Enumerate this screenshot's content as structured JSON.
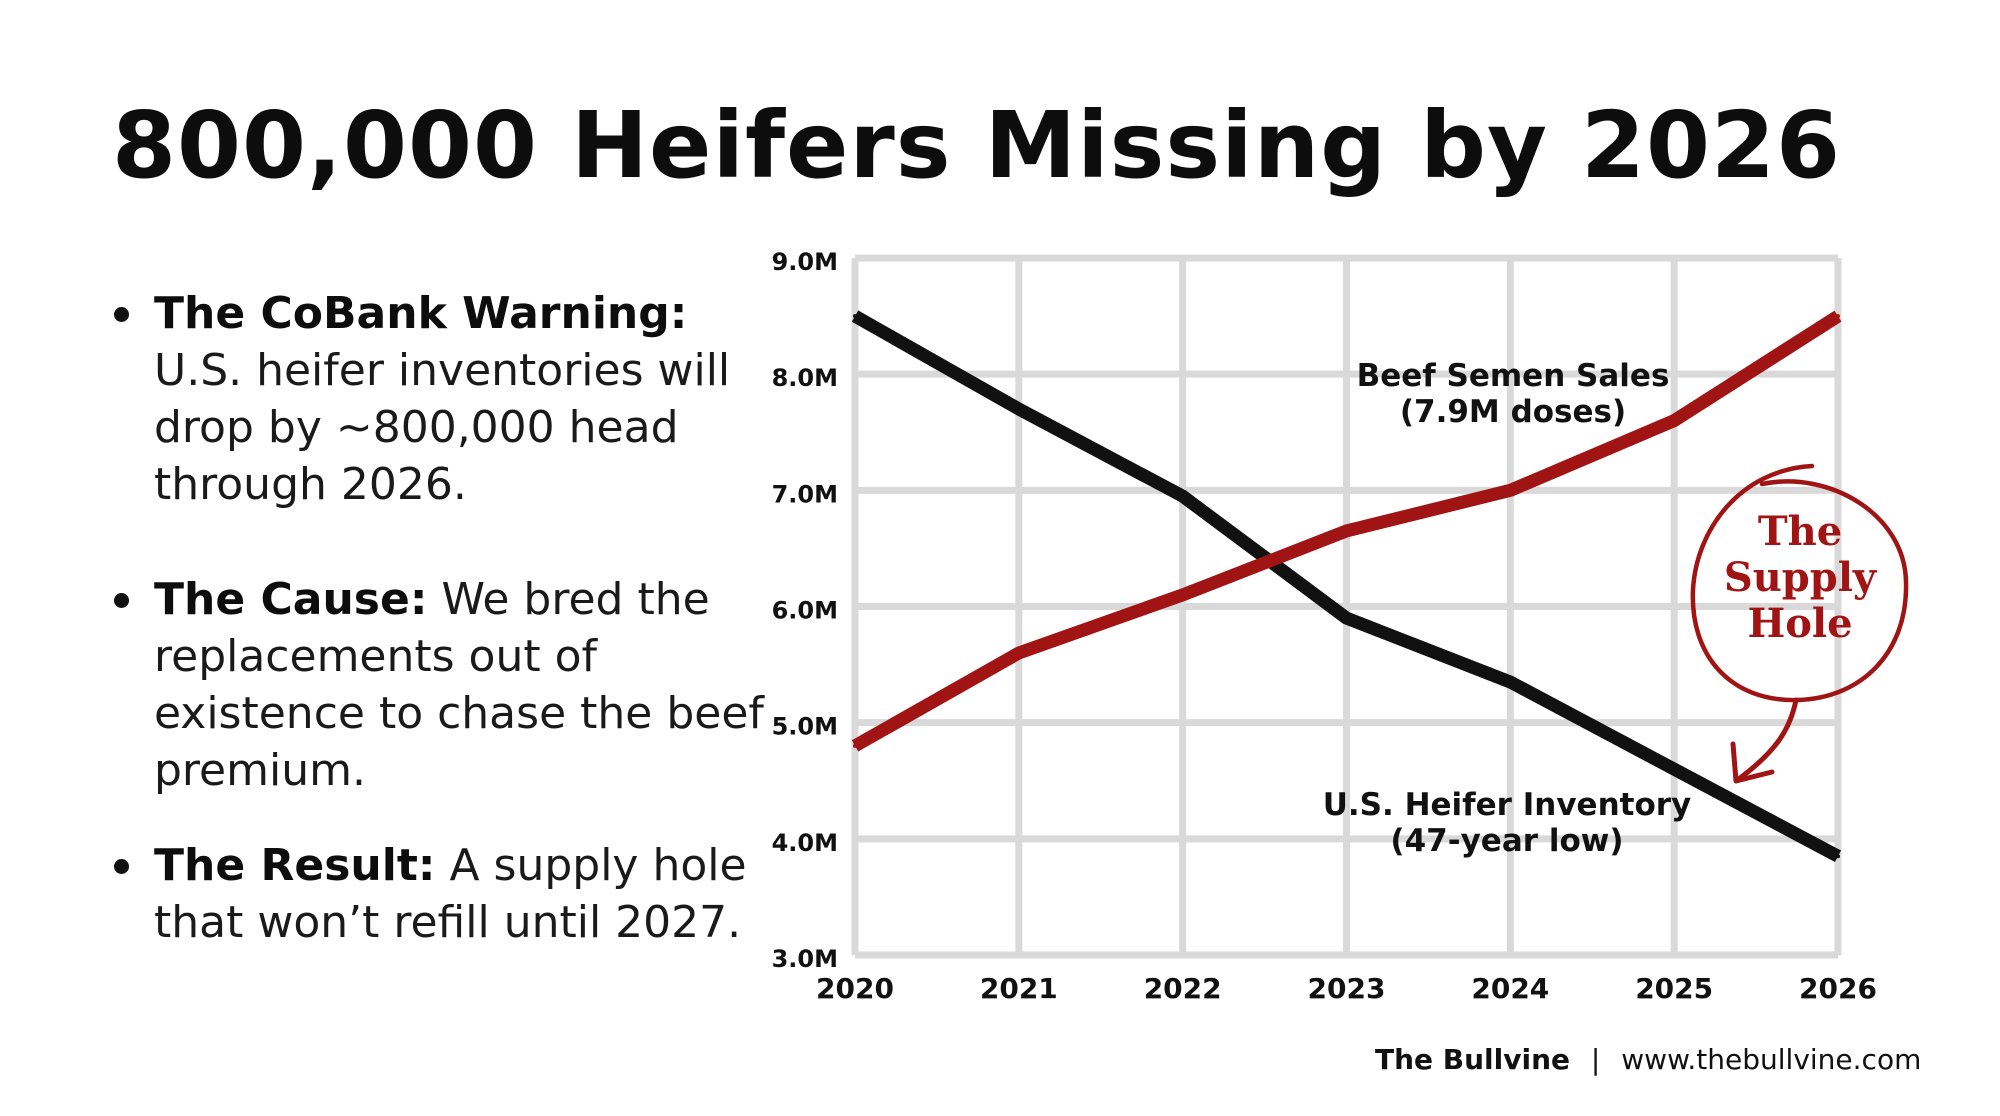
{
  "title": "800,000 Heifers Missing by 2026",
  "bullets": [
    {
      "head": "The CoBank Warning:",
      "text": "U.S. heifer inventories will drop by ~800,000 head through 2026."
    },
    {
      "head": "The Cause:",
      "text": "We bred the replacements out of existence to chase the beef premium."
    },
    {
      "head": "The Result:",
      "text": "A supply hole that won’t refill until 2027."
    }
  ],
  "chart_data": {
    "type": "line",
    "x": [
      2020,
      2021,
      2022,
      2023,
      2024,
      2025,
      2026
    ],
    "ylim": [
      3.0,
      9.0
    ],
    "yticks": [
      "9.0M",
      "8.0M",
      "7.0M",
      "6.0M",
      "5.0M",
      "4.0M",
      "3.0M"
    ],
    "ytick_values": [
      9,
      8,
      7,
      6,
      5,
      4,
      3
    ],
    "xticks": [
      "2020",
      "2021",
      "2022",
      "2023",
      "2024",
      "2025",
      "2026"
    ],
    "grid": true,
    "series": [
      {
        "name": "U.S. Heifer Inventory",
        "label_lines": [
          "U.S. Heifer Inventory",
          "(47-year low)"
        ],
        "color": "#111111",
        "values": [
          8.5,
          7.7,
          6.95,
          5.9,
          5.35,
          4.6,
          3.85
        ]
      },
      {
        "name": "Beef Semen Sales",
        "label_lines": [
          "Beef Semen Sales",
          "(7.9M doses)"
        ],
        "color": "#a11414",
        "values": [
          4.8,
          5.6,
          6.1,
          6.65,
          7.0,
          7.6,
          8.5
        ]
      }
    ],
    "annotation": {
      "lines": [
        "The",
        "Supply",
        "Hole"
      ],
      "color": "#a11414"
    }
  },
  "footer": {
    "brand": "The Bullvine",
    "separator": "|",
    "url": "www.thebullvine.com"
  }
}
